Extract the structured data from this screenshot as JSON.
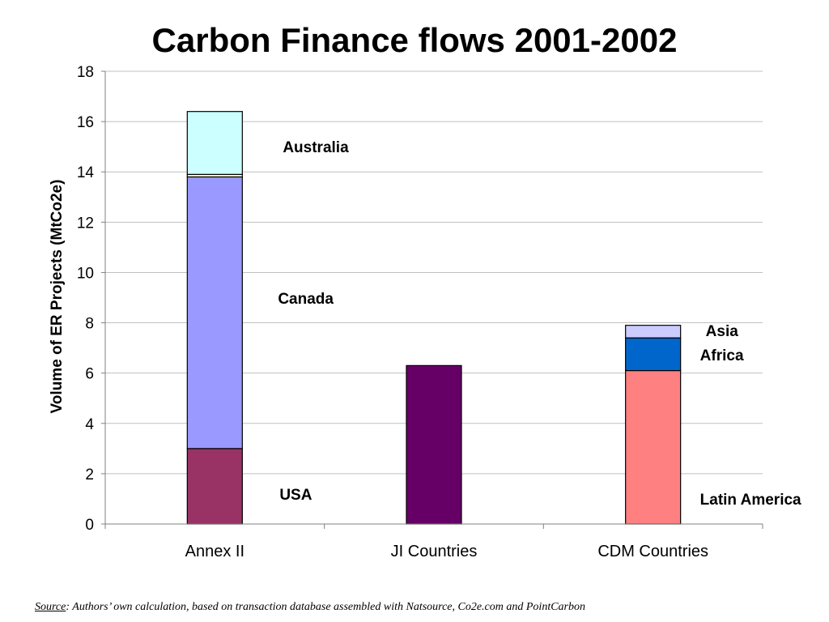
{
  "chart_data": {
    "type": "bar",
    "stacked": true,
    "title": "Carbon Finance flows 2001-2002",
    "ylabel": "Volume of ER Projects (MtCo2e)",
    "xlabel": "",
    "ylim": [
      0,
      18
    ],
    "yticks": [
      0,
      2,
      4,
      6,
      8,
      10,
      12,
      14,
      16,
      18
    ],
    "grid": true,
    "categories": [
      "Annex II",
      "JI Countries",
      "CDM Countries"
    ],
    "segments": [
      {
        "category": 0,
        "label": "USA",
        "value": 3.0,
        "color": "#993366"
      },
      {
        "category": 0,
        "label": "Canada",
        "value": 10.8,
        "color": "#9999ff"
      },
      {
        "category": 0,
        "label": "",
        "value": 0.1,
        "color": "#ffffcc"
      },
      {
        "category": 0,
        "label": "Australia",
        "value": 2.5,
        "color": "#ccffff"
      },
      {
        "category": 1,
        "label": "",
        "value": 6.3,
        "color": "#660066"
      },
      {
        "category": 2,
        "label": "Latin America",
        "value": 6.1,
        "color": "#ff8080"
      },
      {
        "category": 2,
        "label": "Africa",
        "value": 1.3,
        "color": "#0066cc"
      },
      {
        "category": 2,
        "label": "Asia",
        "value": 0.5,
        "color": "#ccccff"
      }
    ]
  },
  "source": {
    "prefix": "Source",
    "text": ": Authors’ own calculation, based on transaction database assembled with Natsource, Co2e.com and PointCarbon"
  }
}
